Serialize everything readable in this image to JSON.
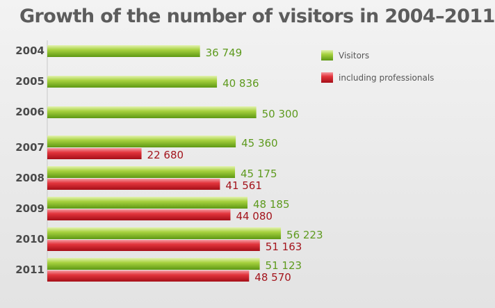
{
  "chart_data": {
    "type": "bar",
    "orientation": "horizontal",
    "title": "Growth of the number of visitors in 2004–2011",
    "categories": [
      "2004",
      "2005",
      "2006",
      "2007",
      "2008",
      "2009",
      "2010",
      "2011"
    ],
    "series": [
      {
        "name": "Visitors",
        "color": "#7ab51d",
        "values": [
          36749,
          40836,
          50300,
          45360,
          45175,
          48185,
          56223,
          51123
        ],
        "labels": [
          "36 749",
          "40 836",
          "50 300",
          "45 360",
          "45 175",
          "48 185",
          "56 223",
          "51 123"
        ]
      },
      {
        "name": "including professionals",
        "color": "#d2161f",
        "values": [
          null,
          null,
          null,
          22680,
          41561,
          44080,
          51163,
          48570
        ],
        "labels": [
          "",
          "",
          "",
          "22 680",
          "41 561",
          "44 080",
          "51 163",
          "48 570"
        ]
      }
    ],
    "legend_position": "top-right",
    "xlim": [
      0,
      60000
    ],
    "grid": false
  }
}
